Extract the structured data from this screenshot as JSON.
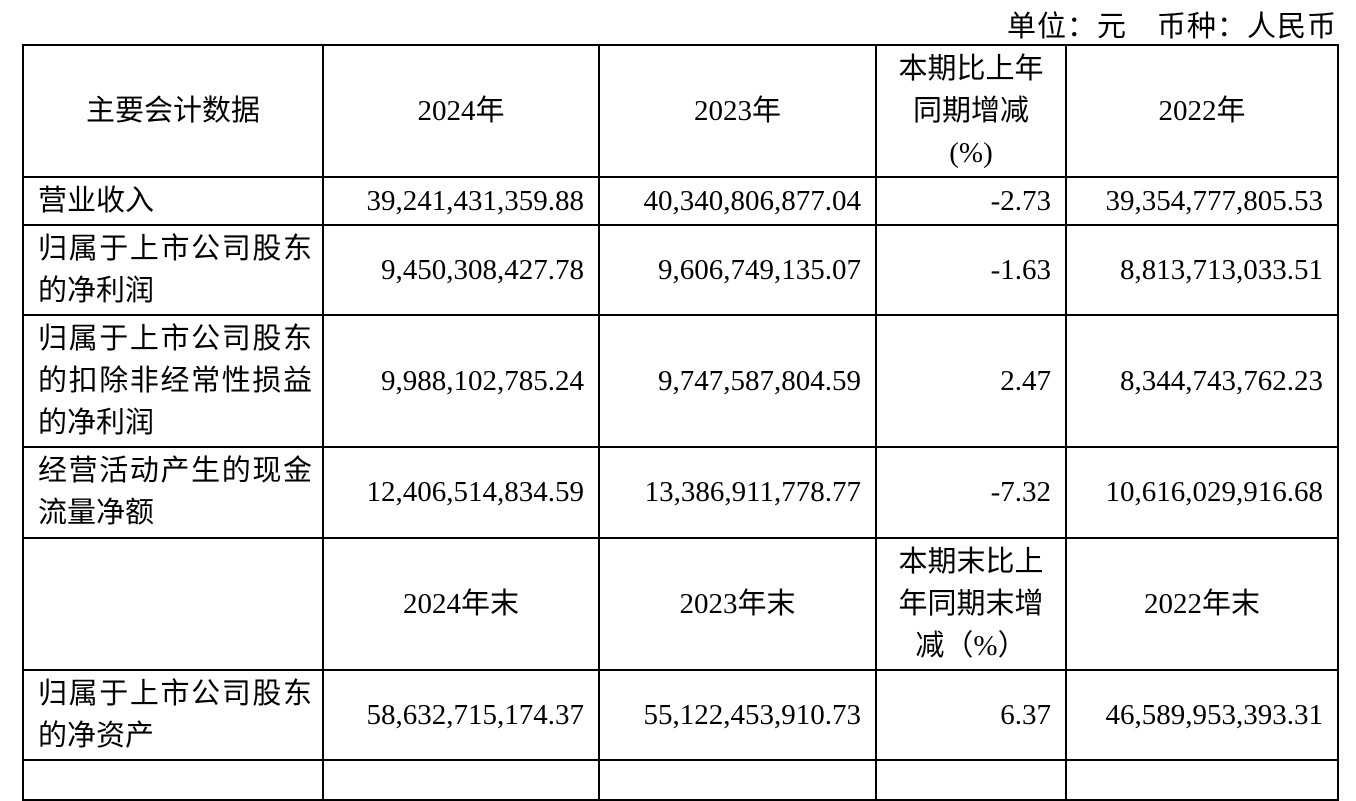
{
  "caption": "单位：元　币种：人民币",
  "table": {
    "title": "主要会计数据",
    "rows": [
      {
        "kind": "header",
        "cells": [
          "主要会计数据",
          "2024年",
          "2023年",
          "本期比上年\n同期增减\n(%)",
          "2022年"
        ]
      },
      {
        "kind": "data",
        "cells": [
          "营业收入",
          "39,241,431,359.88",
          "40,340,806,877.04",
          "-2.73",
          "39,354,777,805.53"
        ]
      },
      {
        "kind": "data",
        "cells": [
          "归属于上市公司股东的净利润",
          "9,450,308,427.78",
          "9,606,749,135.07",
          "-1.63",
          "8,813,713,033.51"
        ]
      },
      {
        "kind": "data",
        "cells": [
          "归属于上市公司股东的扣除非经常性损益的净利润",
          "9,988,102,785.24",
          "9,747,587,804.59",
          "2.47",
          "8,344,743,762.23"
        ]
      },
      {
        "kind": "data",
        "cells": [
          "经营活动产生的现金流量净额",
          "12,406,514,834.59",
          "13,386,911,778.77",
          "-7.32",
          "10,616,029,916.68"
        ]
      },
      {
        "kind": "header",
        "cells": [
          "",
          "2024年末",
          "2023年末",
          "本期末比上\n年同期末增\n减（%）",
          "2022年末"
        ]
      },
      {
        "kind": "data",
        "cells": [
          "归属于上市公司股东的净资产",
          "58,632,715,174.37",
          "55,122,453,910.73",
          "6.37",
          "46,589,953,393.31"
        ]
      },
      {
        "kind": "partial",
        "cells": [
          "",
          "",
          "",
          "",
          ""
        ]
      }
    ]
  }
}
